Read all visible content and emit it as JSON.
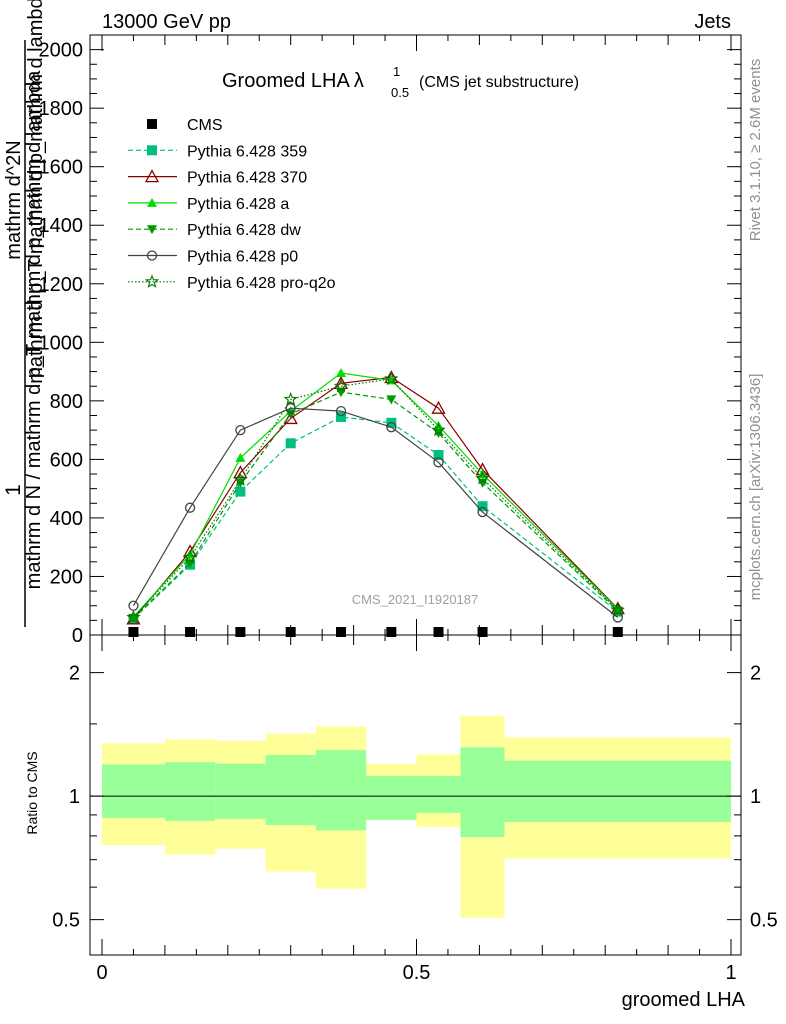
{
  "header": {
    "left": "13000 GeV pp",
    "right": "Jets"
  },
  "main": {
    "title": "Groomed LHA",
    "title_symbol": "λ",
    "title_sup": "1",
    "title_sub": "0.5",
    "title_note": "(CMS jet substructure)",
    "ylabel_num": "1",
    "ylabel_den": "mathrm d N / mathrm d p_T mathrm d p_mathrm d lambda",
    "ylabel_num2": "mathrm d^2N",
    "ylabel_den2": "mathrm d p_T mathrm d p_mathrm d lambda",
    "watermark": "CMS_2021_I1920187"
  },
  "side": {
    "rivet": "Rivet 3.1.10, ≥ 2.6M events",
    "mcplots": "mcplots.cern.ch [arXiv:1306.3436]"
  },
  "ratio": {
    "ylabel": "Ratio to CMS",
    "xlabel": "groomed LHA"
  },
  "colors": {
    "band_outer": "#ffff99",
    "band_inner": "#99ff99",
    "cms": "#000000",
    "p359": "#00c080",
    "p370": "#8b0000",
    "pa": "#00dd00",
    "pdw": "#009900",
    "pp0": "#444444",
    "pq2o": "#007700"
  },
  "chart_data": [
    {
      "type": "line",
      "title": "Groomed LHA λ^1_0.5 (CMS jet substructure)",
      "xlabel": "groomed LHA",
      "ylabel": "1/N dN/dλ",
      "xlim": [
        0,
        1
      ],
      "ylim": [
        0,
        2050
      ],
      "yticks": [
        0,
        200,
        400,
        600,
        800,
        1000,
        1200,
        1400,
        1600,
        1800,
        2000
      ],
      "x": [
        0.05,
        0.14,
        0.22,
        0.3,
        0.38,
        0.46,
        0.535,
        0.605,
        0.82
      ],
      "series": [
        {
          "name": "CMS",
          "key": "cms",
          "marker": "square",
          "dash": "solid",
          "values": [
            5,
            5,
            5,
            5,
            5,
            5,
            5,
            5,
            5
          ]
        },
        {
          "name": "Pythia 6.428 359",
          "key": "p359",
          "marker": "square",
          "dash": "dashed",
          "values": [
            55,
            240,
            490,
            655,
            745,
            725,
            615,
            440,
            80
          ]
        },
        {
          "name": "Pythia 6.428 370",
          "key": "p370",
          "marker": "triangle-open",
          "dash": "solid",
          "values": [
            55,
            285,
            555,
            740,
            860,
            880,
            775,
            565,
            90
          ]
        },
        {
          "name": "Pythia 6.428 a",
          "key": "pa",
          "marker": "triangle",
          "dash": "solid",
          "values": [
            62,
            275,
            605,
            765,
            895,
            870,
            715,
            550,
            88
          ]
        },
        {
          "name": "Pythia 6.428 dw",
          "key": "pdw",
          "marker": "triangle-down",
          "dash": "dashed",
          "values": [
            58,
            245,
            520,
            755,
            830,
            805,
            690,
            520,
            82
          ]
        },
        {
          "name": "Pythia 6.428 p0",
          "key": "pp0",
          "marker": "circle-open",
          "dash": "solid",
          "values": [
            100,
            435,
            700,
            775,
            765,
            710,
            590,
            420,
            60
          ]
        },
        {
          "name": "Pythia 6.428 pro-q2o",
          "key": "pq2o",
          "marker": "star",
          "dash": "dotted",
          "values": [
            60,
            265,
            530,
            805,
            850,
            875,
            700,
            535,
            85
          ]
        }
      ]
    },
    {
      "type": "area",
      "title": "Ratio to CMS",
      "xlabel": "groomed LHA",
      "ylabel": "Ratio to CMS",
      "xlim": [
        0,
        1
      ],
      "ylim": [
        0.41,
        2.47
      ],
      "scale": "log",
      "yticks": [
        0.5,
        1,
        2
      ],
      "bin_edges": [
        0,
        0.1,
        0.18,
        0.26,
        0.34,
        0.42,
        0.5,
        0.57,
        0.64,
        1.0
      ],
      "outer_low": [
        0.76,
        0.72,
        0.745,
        0.655,
        0.595,
        0.875,
        0.84,
        0.505,
        0.705
      ],
      "outer_high": [
        1.345,
        1.375,
        1.365,
        1.42,
        1.48,
        1.2,
        1.265,
        1.57,
        1.39
      ],
      "inner_low": [
        0.885,
        0.87,
        0.88,
        0.85,
        0.825,
        0.875,
        0.91,
        0.795,
        0.865
      ],
      "inner_high": [
        1.195,
        1.21,
        1.2,
        1.26,
        1.295,
        1.12,
        1.12,
        1.315,
        1.22
      ]
    }
  ]
}
